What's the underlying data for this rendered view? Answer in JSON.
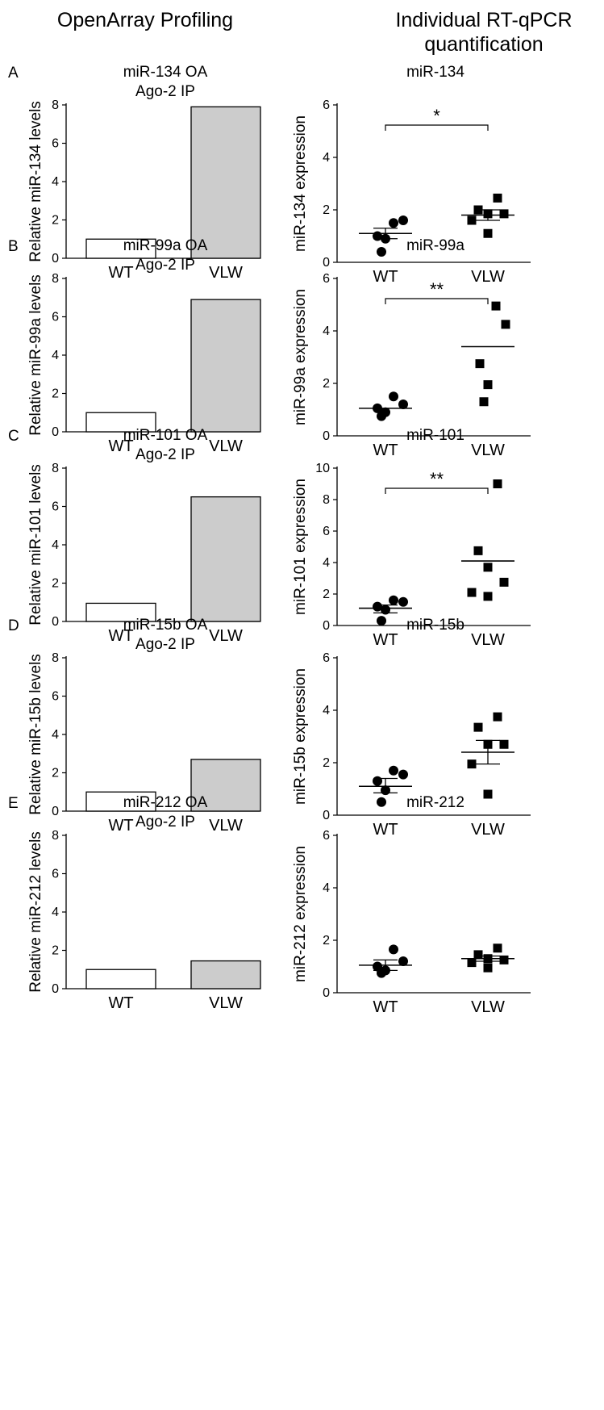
{
  "header": {
    "left_title": "OpenArray Profiling",
    "right_title_line1": "Individual RT-qPCR",
    "right_title_line2": "quantification"
  },
  "colors": {
    "wt_bar": "#ffffff",
    "vlw_bar": "#cccccc",
    "axis": "#000000"
  },
  "chart_data": [
    {
      "panel": "A",
      "type": "bar",
      "title": [
        "miR-134 OA",
        "Ago-2 IP"
      ],
      "ylabel": "Relative miR-134 levels",
      "categories": [
        "WT",
        "VLW"
      ],
      "values": [
        1.0,
        7.9
      ],
      "ylim": [
        0,
        8
      ],
      "yticks": [
        0,
        2,
        4,
        6,
        8
      ]
    },
    {
      "panel": "A",
      "type": "scatter",
      "title": [
        "miR-134"
      ],
      "ylabel": "miR-134 expression",
      "categories": [
        "WT",
        "VLW"
      ],
      "ylim": [
        0,
        6
      ],
      "yticks": [
        0,
        2,
        4,
        6
      ],
      "series": [
        {
          "name": "WT",
          "marker": "circle",
          "values": [
            1.5,
            1.6,
            1.0,
            0.9,
            0.4
          ],
          "mean": 1.1,
          "sem": [
            0.9,
            1.3
          ]
        },
        {
          "name": "VLW",
          "marker": "square",
          "values": [
            2.45,
            2.0,
            1.85,
            1.85,
            1.6,
            1.1
          ],
          "mean": 1.8,
          "sem": [
            1.6,
            2.0
          ]
        }
      ],
      "significance": "*"
    },
    {
      "panel": "B",
      "type": "bar",
      "title": [
        "miR-99a OA",
        "Ago-2 IP"
      ],
      "ylabel": "Relative miR-99a levels",
      "categories": [
        "WT",
        "VLW"
      ],
      "values": [
        1.0,
        6.9
      ],
      "ylim": [
        0,
        8
      ],
      "yticks": [
        0,
        2,
        4,
        6,
        8
      ]
    },
    {
      "panel": "B",
      "type": "scatter",
      "title": [
        "miR-99a"
      ],
      "ylabel": "miR-99a expression",
      "categories": [
        "WT",
        "VLW"
      ],
      "ylim": [
        0,
        6
      ],
      "yticks": [
        0,
        2,
        4,
        6
      ],
      "series": [
        {
          "name": "WT",
          "marker": "circle",
          "values": [
            1.5,
            1.2,
            1.05,
            0.9,
            0.75
          ],
          "mean": 1.05
        },
        {
          "name": "VLW",
          "marker": "square",
          "values": [
            4.95,
            4.25,
            2.75,
            1.95,
            1.3
          ],
          "mean": 3.4
        }
      ],
      "significance": "**"
    },
    {
      "panel": "C",
      "type": "bar",
      "title": [
        "miR-101 OA",
        "Ago-2 IP"
      ],
      "ylabel": "Relative miR-101 levels",
      "categories": [
        "WT",
        "VLW"
      ],
      "values": [
        0.95,
        6.5
      ],
      "ylim": [
        0,
        8
      ],
      "yticks": [
        0,
        2,
        4,
        6,
        8
      ]
    },
    {
      "panel": "C",
      "type": "scatter",
      "title": [
        "miR-101"
      ],
      "ylabel": "miR-101 expression",
      "categories": [
        "WT",
        "VLW"
      ],
      "ylim": [
        0,
        10
      ],
      "yticks": [
        0,
        2,
        4,
        6,
        8,
        10
      ],
      "series": [
        {
          "name": "WT",
          "marker": "circle",
          "values": [
            1.6,
            1.5,
            1.2,
            1.0,
            0.3
          ],
          "mean": 1.1,
          "sem": [
            0.8,
            1.3
          ]
        },
        {
          "name": "VLW",
          "marker": "square",
          "values": [
            9.0,
            4.75,
            3.7,
            2.75,
            2.1,
            1.85
          ],
          "mean": 4.1
        }
      ],
      "significance": "**"
    },
    {
      "panel": "D",
      "type": "bar",
      "title": [
        "miR-15b OA",
        "Ago-2 IP"
      ],
      "ylabel": "Relative miR-15b levels",
      "categories": [
        "WT",
        "VLW"
      ],
      "values": [
        1.0,
        2.7
      ],
      "ylim": [
        0,
        8
      ],
      "yticks": [
        0,
        2,
        4,
        6,
        8
      ]
    },
    {
      "panel": "D",
      "type": "scatter",
      "title": [
        "miR-15b"
      ],
      "ylabel": "miR-15b expression",
      "categories": [
        "WT",
        "VLW"
      ],
      "ylim": [
        0,
        6
      ],
      "yticks": [
        0,
        2,
        4,
        6
      ],
      "series": [
        {
          "name": "WT",
          "marker": "circle",
          "values": [
            1.7,
            1.55,
            1.3,
            0.95,
            0.5
          ],
          "mean": 1.1,
          "sem": [
            0.85,
            1.4
          ]
        },
        {
          "name": "VLW",
          "marker": "square",
          "values": [
            3.75,
            3.35,
            2.7,
            2.7,
            1.95,
            0.8
          ],
          "mean": 2.4,
          "sem": [
            1.95,
            2.85
          ]
        }
      ],
      "significance": ""
    },
    {
      "panel": "E",
      "type": "bar",
      "title": [
        "miR-212 OA",
        "Ago-2 IP"
      ],
      "ylabel": "Relative miR-212 levels",
      "categories": [
        "WT",
        "VLW"
      ],
      "values": [
        1.0,
        1.45
      ],
      "ylim": [
        0,
        8
      ],
      "yticks": [
        0,
        2,
        4,
        6,
        8
      ]
    },
    {
      "panel": "E",
      "type": "scatter",
      "title": [
        "miR-212"
      ],
      "ylabel": "miR-212 expression",
      "categories": [
        "WT",
        "VLW"
      ],
      "ylim": [
        0,
        6
      ],
      "yticks": [
        0,
        2,
        4,
        6
      ],
      "series": [
        {
          "name": "WT",
          "marker": "circle",
          "values": [
            1.65,
            1.2,
            1.0,
            0.85,
            0.75
          ],
          "mean": 1.05,
          "sem": [
            0.85,
            1.25
          ]
        },
        {
          "name": "VLW",
          "marker": "square",
          "values": [
            1.7,
            1.45,
            1.3,
            1.25,
            1.15,
            0.95
          ],
          "mean": 1.3,
          "sem": [
            1.2,
            1.4
          ]
        }
      ],
      "significance": ""
    }
  ]
}
